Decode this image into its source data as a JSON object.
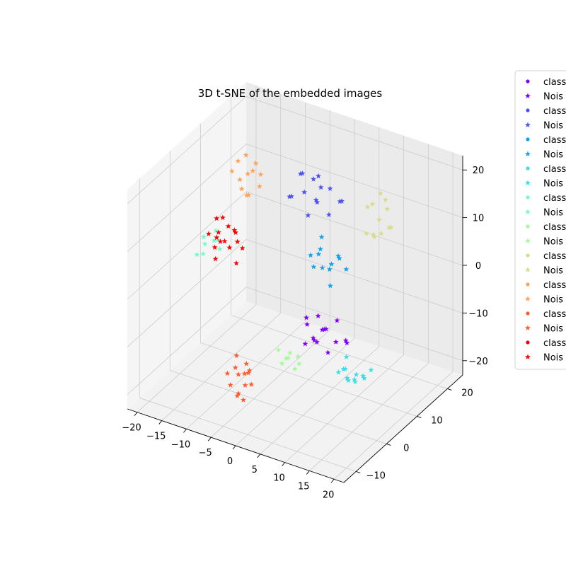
{
  "chart_data": {
    "type": "scatter",
    "projection": "3d",
    "title": "3D t-SNE of the embedded images",
    "xlim": [
      -22,
      22
    ],
    "ylim": [
      -14,
      25
    ],
    "zlim": [
      -23,
      23
    ],
    "x_ticks": [
      -20,
      -15,
      -10,
      -5,
      0,
      5,
      10,
      15,
      20
    ],
    "y_ticks": [
      -10,
      0,
      10,
      20
    ],
    "z_ticks": [
      -20,
      -10,
      0,
      10,
      20
    ],
    "grid": true,
    "legend_position": "right-outside",
    "series": [
      {
        "name": "class",
        "marker": "circle",
        "color": "#8000ff",
        "points": []
      },
      {
        "name": "Nois",
        "marker": "star",
        "color": "#8000ff",
        "points": [
          [
            4,
            5,
            -10
          ],
          [
            6,
            6,
            -8
          ],
          [
            3,
            4,
            -11
          ],
          [
            5,
            7,
            -9
          ],
          [
            7,
            5,
            -12
          ],
          [
            2,
            6,
            -7
          ],
          [
            8,
            6,
            -10
          ],
          [
            4,
            3,
            -6
          ],
          [
            9,
            8,
            -11
          ],
          [
            6,
            3,
            -9
          ],
          [
            3,
            7,
            -12
          ],
          [
            5,
            5,
            -5
          ],
          [
            7,
            8,
            -7
          ],
          [
            10,
            6,
            -9
          ],
          [
            4,
            8,
            -10
          ]
        ]
      },
      {
        "name": "class",
        "marker": "circle",
        "color": "#4b50f8",
        "points": []
      },
      {
        "name": "Nois",
        "marker": "star",
        "color": "#4b50f8",
        "points": [
          [
            -4,
            15,
            12
          ],
          [
            -2,
            16,
            10
          ],
          [
            0,
            17,
            13
          ],
          [
            -6,
            14,
            11
          ],
          [
            -3,
            18,
            14
          ],
          [
            1,
            15,
            9
          ],
          [
            -5,
            16,
            15
          ],
          [
            -1,
            14,
            12
          ],
          [
            2,
            17,
            11
          ],
          [
            -7,
            15,
            10
          ],
          [
            -4,
            18,
            13
          ],
          [
            0,
            14,
            15
          ],
          [
            3,
            16,
            12
          ],
          [
            -2,
            13,
            9
          ],
          [
            -6,
            17,
            14
          ]
        ]
      },
      {
        "name": "class",
        "marker": "circle",
        "color": "#10a2f0",
        "points": []
      },
      {
        "name": "Nois",
        "marker": "star",
        "color": "#10a2f0",
        "points": [
          [
            2,
            10,
            4
          ],
          [
            4,
            11,
            2
          ],
          [
            3,
            9,
            6
          ],
          [
            5,
            12,
            3
          ],
          [
            1,
            10,
            1
          ],
          [
            6,
            10,
            5
          ],
          [
            3,
            12,
            0
          ],
          [
            4,
            8,
            3
          ],
          [
            2,
            11,
            7
          ],
          [
            5,
            9,
            -1
          ],
          [
            7,
            11,
            2
          ],
          [
            1,
            9,
            4
          ]
        ]
      },
      {
        "name": "class",
        "marker": "circle",
        "color": "#3adfe6",
        "points": []
      },
      {
        "name": "Nois",
        "marker": "star",
        "color": "#3adfe6",
        "points": [
          [
            12,
            2,
            -12
          ],
          [
            14,
            3,
            -13
          ],
          [
            13,
            1,
            -11
          ],
          [
            15,
            4,
            -14
          ],
          [
            11,
            2,
            -13
          ],
          [
            16,
            2,
            -12
          ],
          [
            13,
            4,
            -15
          ],
          [
            14,
            0,
            -12
          ],
          [
            12,
            3,
            -10
          ],
          [
            15,
            1,
            -13
          ],
          [
            17,
            3,
            -11
          ],
          [
            13,
            2,
            -14
          ]
        ]
      },
      {
        "name": "class",
        "marker": "circle",
        "color": "#73fbca",
        "points": []
      },
      {
        "name": "Nois",
        "marker": "star",
        "color": "#73fbca",
        "points": [
          [
            -18,
            5,
            2
          ],
          [
            -17,
            7,
            4
          ],
          [
            -19,
            4,
            0
          ],
          [
            -16,
            6,
            3
          ],
          [
            -18,
            8,
            1
          ],
          [
            -17,
            3,
            5
          ],
          [
            -19,
            6,
            -1
          ],
          [
            -15,
            5,
            2
          ]
        ]
      },
      {
        "name": "class",
        "marker": "circle",
        "color": "#a6f89e",
        "points": []
      },
      {
        "name": "Nois",
        "marker": "star",
        "color": "#a6f89e",
        "points": [
          [
            2,
            0,
            -12
          ],
          [
            3,
            -1,
            -10
          ],
          [
            1,
            1,
            -13
          ],
          [
            4,
            0,
            -11
          ],
          [
            2,
            -2,
            -12
          ],
          [
            3,
            2,
            -14
          ],
          [
            0,
            0,
            -11
          ],
          [
            4,
            -1,
            -13
          ]
        ]
      },
      {
        "name": "class",
        "marker": "circle",
        "color": "#d8dc8c",
        "points": []
      },
      {
        "name": "Nois",
        "marker": "star",
        "color": "#d8dc8c",
        "points": [
          [
            8,
            18,
            12
          ],
          [
            10,
            17,
            10
          ],
          [
            9,
            19,
            14
          ],
          [
            11,
            16,
            8
          ],
          [
            7,
            18,
            11
          ],
          [
            10,
            19,
            13
          ],
          [
            12,
            17,
            9
          ],
          [
            8,
            16,
            7
          ],
          [
            11,
            18,
            12
          ],
          [
            9,
            17,
            6
          ],
          [
            13,
            16,
            10
          ],
          [
            10,
            15,
            8
          ]
        ]
      },
      {
        "name": "class",
        "marker": "circle",
        "color": "#fca35c",
        "points": []
      },
      {
        "name": "Nois",
        "marker": "star",
        "color": "#fca35c",
        "points": [
          [
            -14,
            10,
            14
          ],
          [
            -12,
            11,
            16
          ],
          [
            -13,
            9,
            13
          ],
          [
            -11,
            12,
            15
          ],
          [
            -15,
            11,
            17
          ],
          [
            -12,
            9,
            12
          ],
          [
            -14,
            12,
            18
          ],
          [
            -10,
            10,
            14
          ],
          [
            -13,
            11,
            15
          ],
          [
            -11,
            8,
            13
          ],
          [
            -15,
            9,
            16
          ],
          [
            -12,
            12,
            17
          ]
        ]
      },
      {
        "name": "class",
        "marker": "circle",
        "color": "#ff5c2e",
        "points": []
      },
      {
        "name": "Nois",
        "marker": "star",
        "color": "#ff5c2e",
        "points": [
          [
            -5,
            -5,
            -15
          ],
          [
            -4,
            -4,
            -13
          ],
          [
            -6,
            -6,
            -17
          ],
          [
            -3,
            -5,
            -14
          ],
          [
            -5,
            -3,
            -16
          ],
          [
            -4,
            -7,
            -18
          ],
          [
            -6,
            -4,
            -12
          ],
          [
            -3,
            -6,
            -16
          ],
          [
            -5,
            -5,
            -19
          ],
          [
            -4,
            -3,
            -15
          ],
          [
            -6,
            -7,
            -14
          ],
          [
            -3,
            -4,
            -17
          ],
          [
            -5,
            -6,
            -13
          ],
          [
            -4,
            -5,
            -20
          ]
        ]
      },
      {
        "name": "class",
        "marker": "circle",
        "color": "#ff0000",
        "points": []
      },
      {
        "name": "Nois",
        "marker": "star",
        "color": "#ff0000",
        "points": [
          [
            -15,
            4,
            5
          ],
          [
            -13,
            5,
            3
          ],
          [
            -14,
            3,
            7
          ],
          [
            -12,
            6,
            4
          ],
          [
            -16,
            5,
            2
          ],
          [
            -13,
            2,
            6
          ],
          [
            -15,
            6,
            8
          ],
          [
            -11,
            4,
            1
          ],
          [
            -14,
            5,
            4
          ],
          [
            -12,
            3,
            9
          ],
          [
            -16,
            3,
            6
          ],
          [
            -13,
            7,
            5
          ],
          [
            -11,
            6,
            3
          ],
          [
            -14,
            2,
            2
          ],
          [
            -15,
            4,
            9
          ],
          [
            -12,
            5,
            7
          ]
        ]
      }
    ]
  }
}
